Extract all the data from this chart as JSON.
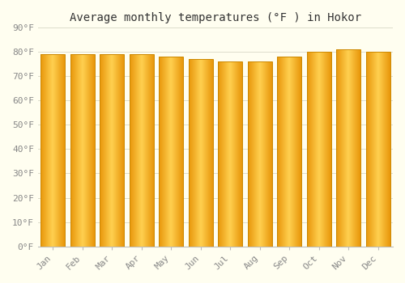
{
  "title": "Average monthly temperatures (°F ) in Hokor",
  "months": [
    "Jan",
    "Feb",
    "Mar",
    "Apr",
    "May",
    "Jun",
    "Jul",
    "Aug",
    "Sep",
    "Oct",
    "Nov",
    "Dec"
  ],
  "values": [
    79,
    79,
    79,
    79,
    78,
    77,
    76,
    76,
    78,
    80,
    81,
    80
  ],
  "bar_color_edge": "#E8960A",
  "bar_color_center": "#FFD050",
  "bar_color_main": "#FFAA00",
  "background_color": "#FFFEF0",
  "grid_color": "#DDDDCC",
  "ylim": [
    0,
    90
  ],
  "yticks": [
    0,
    10,
    20,
    30,
    40,
    50,
    60,
    70,
    80,
    90
  ],
  "title_fontsize": 10,
  "tick_fontsize": 8,
  "font_family": "monospace"
}
